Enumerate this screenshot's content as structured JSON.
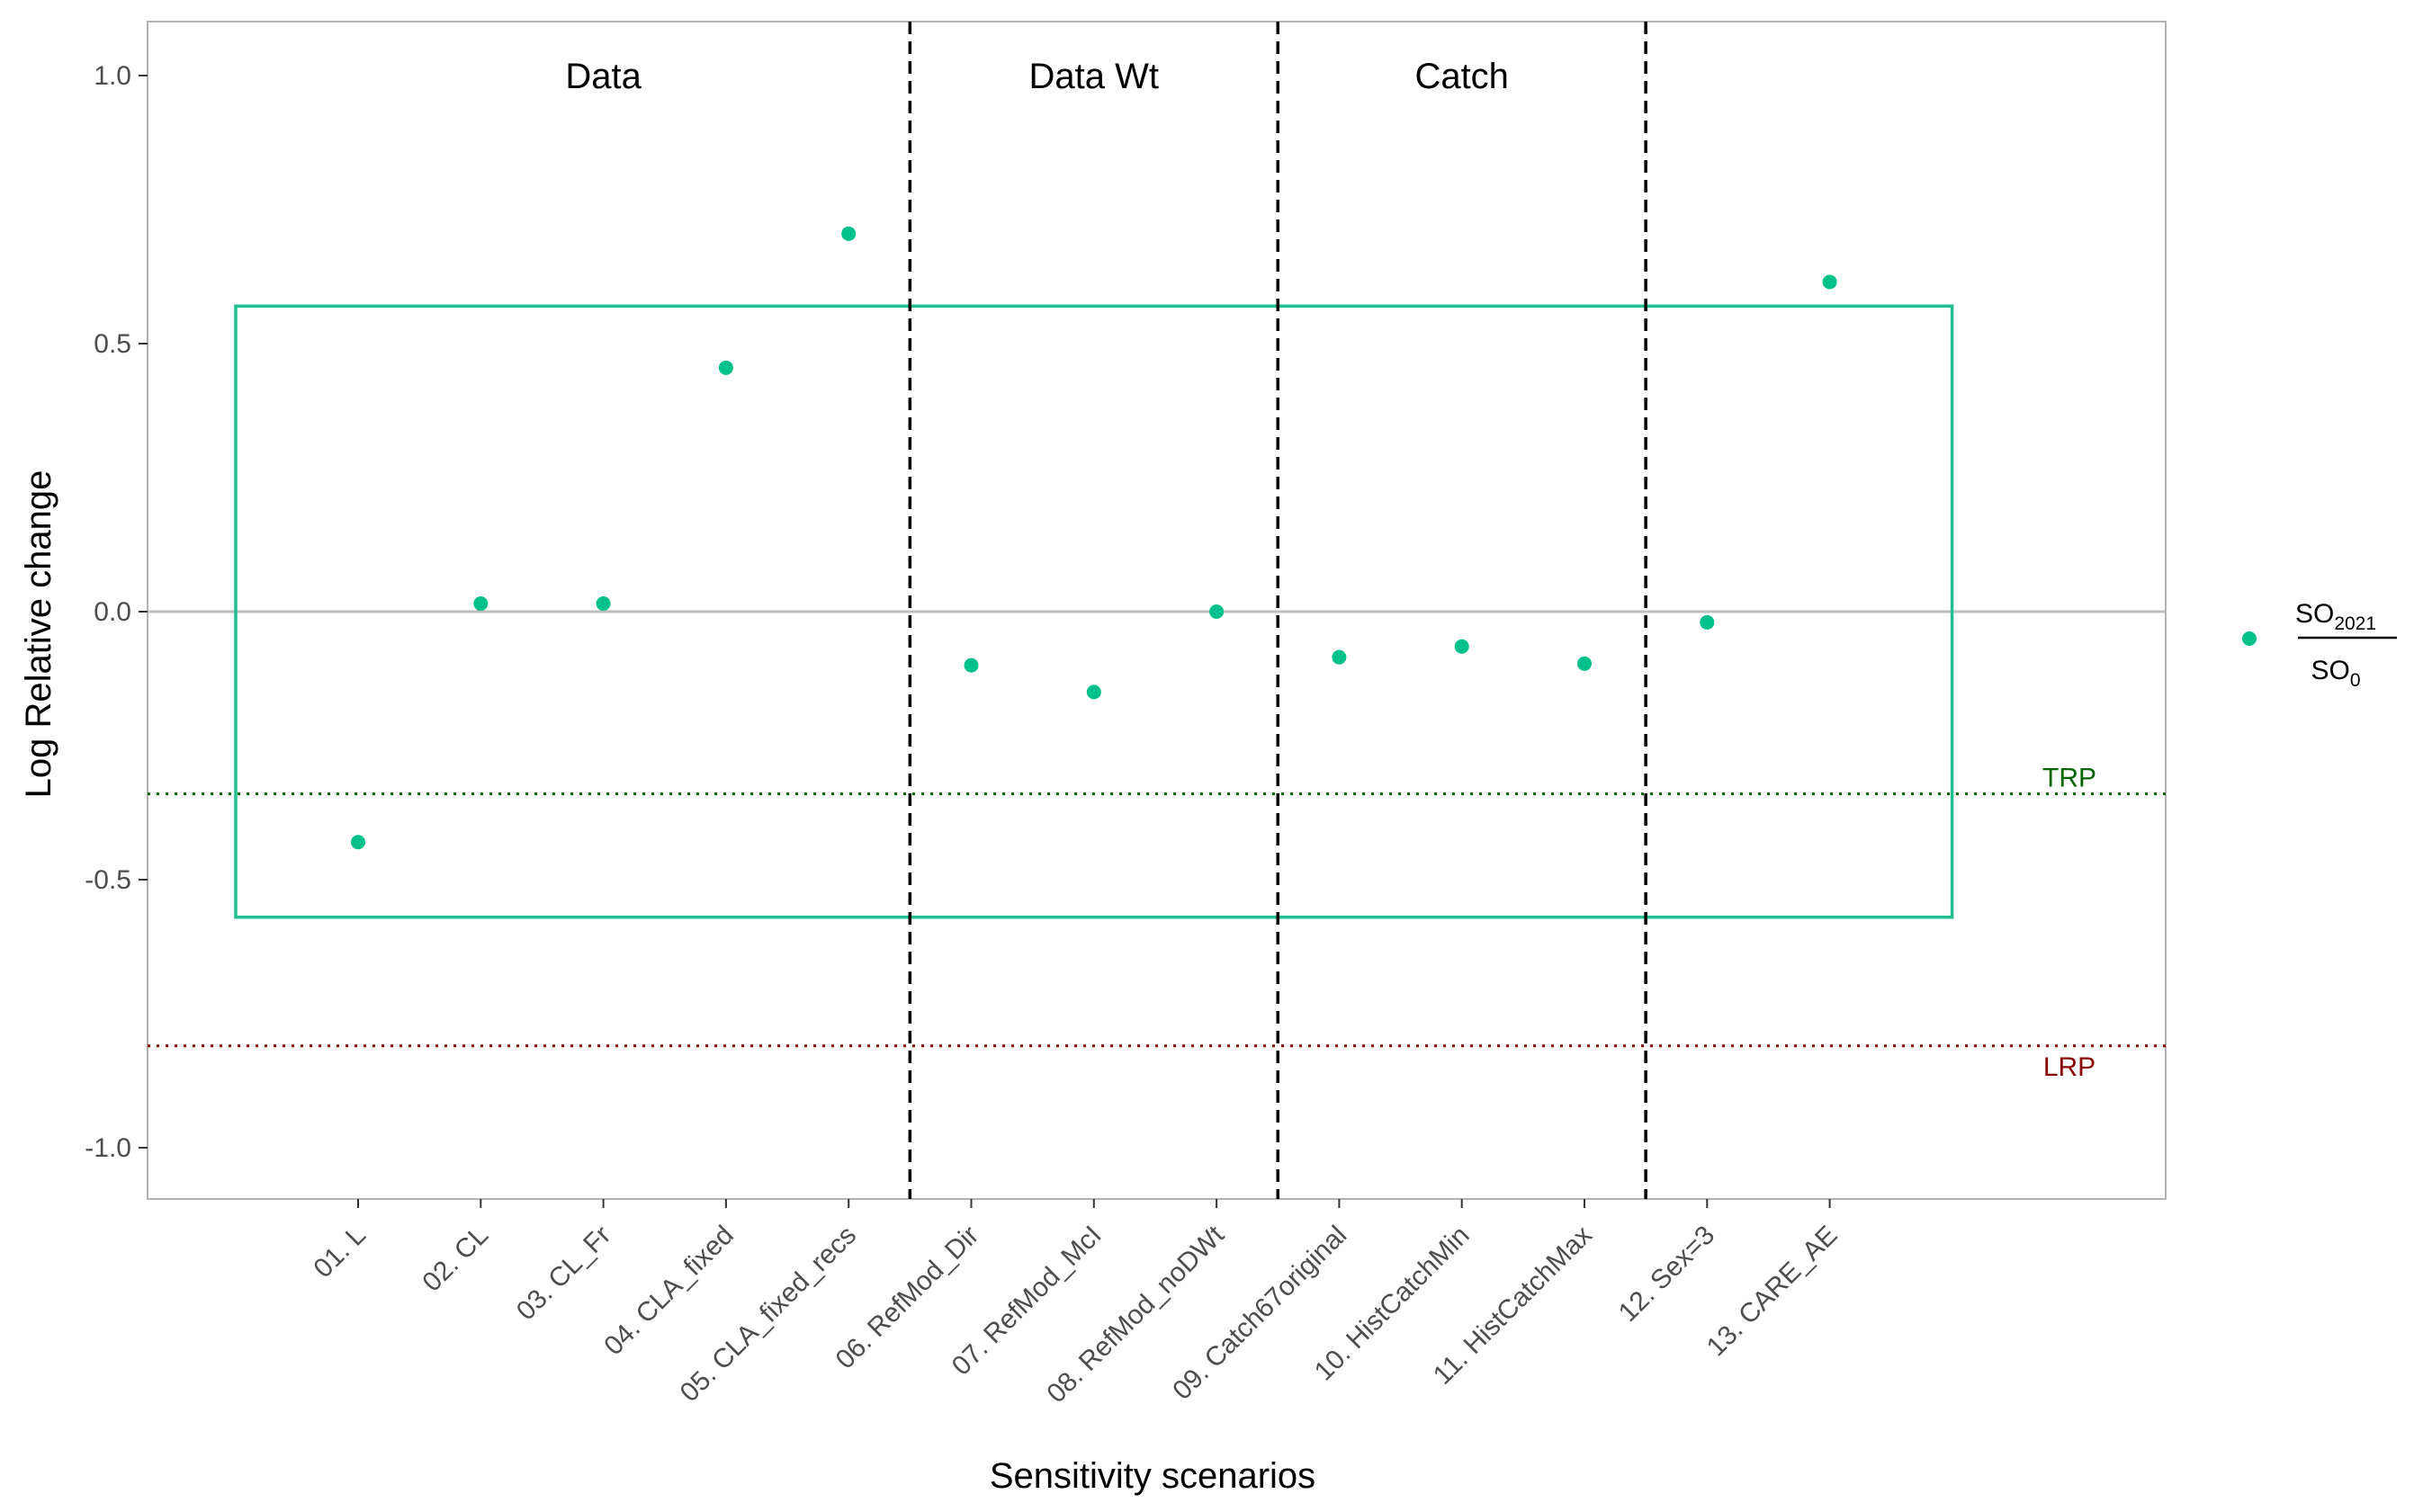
{
  "chart_data": {
    "type": "scatter",
    "xlabel": "Sensitivity scenarios",
    "ylabel": "Log Relative change",
    "ylim": [
      -1.1,
      1.1
    ],
    "yticks": [
      {
        "v": 1.0,
        "label": "1.0"
      },
      {
        "v": 0.5,
        "label": "0.5"
      },
      {
        "v": 0.0,
        "label": "0.0"
      },
      {
        "v": -0.5,
        "label": "-0.5"
      },
      {
        "v": -1.0,
        "label": "-1.0"
      }
    ],
    "categories": [
      "01. L",
      "02. CL",
      "03. CL_Fr",
      "04. CLA_fixed",
      "05. CLA_fixed_recs",
      "06. RefMod_Dir",
      "07. RefMod_McI",
      "08. RefMod_noDWt",
      "09. Catch67original",
      "10. HistCatchMin",
      "11. HistCatchMax",
      "12. Sex=3",
      "13. CARE_AE"
    ],
    "series": [
      {
        "legend_main": "SO",
        "legend_main_sub": "2021",
        "legend_denom": "SO",
        "legend_denom_sub": "0",
        "color": "#00C08B",
        "values": [
          -0.43,
          0.015,
          0.015,
          0.455,
          0.705,
          -0.1,
          -0.15,
          0.0,
          -0.085,
          -0.065,
          -0.097,
          -0.02,
          0.615
        ]
      }
    ],
    "groups": [
      {
        "label": "Data",
        "from": 0,
        "to": 4
      },
      {
        "label": "Data Wt",
        "from": 5,
        "to": 7
      },
      {
        "label": "Catch",
        "from": 8,
        "to": 10
      }
    ],
    "separators_after_index": [
      4,
      7,
      10
    ],
    "reference_lines": [
      {
        "label": "TRP",
        "value": -0.34,
        "color": "#006400"
      },
      {
        "label": "LRP",
        "value": -0.81,
        "color": "#8B0000"
      }
    ],
    "zero_line": 0.0,
    "range_box": {
      "ymin": -0.57,
      "ymax": 0.57,
      "color": "#1FBF8F"
    },
    "grid": false,
    "legend_position": "right"
  }
}
